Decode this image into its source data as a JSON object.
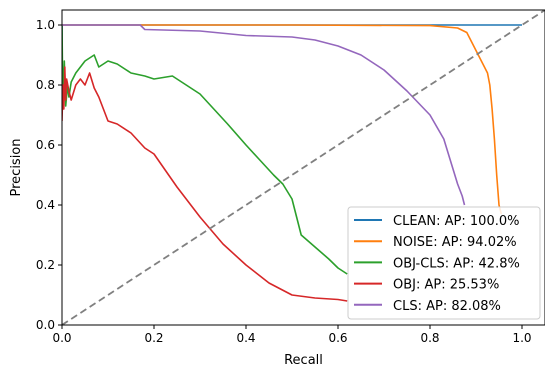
{
  "chart_data": {
    "type": "line",
    "xlabel": "Recall",
    "ylabel": "Precision",
    "xlim": [
      0.0,
      1.05
    ],
    "ylim": [
      0.0,
      1.05
    ],
    "xticks": [
      0.0,
      0.2,
      0.4,
      0.6,
      0.8,
      1.0
    ],
    "yticks": [
      0.0,
      0.2,
      0.4,
      0.6,
      0.8,
      1.0
    ],
    "xtick_labels": [
      "0.0",
      "0.2",
      "0.4",
      "0.6",
      "0.8",
      "1.0"
    ],
    "ytick_labels": [
      "0.0",
      "0.2",
      "0.4",
      "0.6",
      "0.8",
      "1.0"
    ],
    "grid": false,
    "legend_position": "lower-right",
    "diagonal": {
      "x": [
        0,
        1.05
      ],
      "y": [
        0,
        1.05
      ],
      "color": "#808080",
      "style": "dashed"
    },
    "series": [
      {
        "name": "CLEAN: AP: 100.0%",
        "color": "#1f77b4",
        "x": [
          0.0,
          0.0,
          1.0
        ],
        "y": [
          0.72,
          1.0,
          1.0
        ]
      },
      {
        "name": "NOISE: AP: 94.02%",
        "color": "#ff7f0e",
        "x": [
          0.0,
          0.01,
          0.1,
          0.5,
          0.8,
          0.86,
          0.88,
          0.895,
          0.905,
          0.915,
          0.925,
          0.93,
          0.935,
          0.94,
          0.945,
          0.95,
          0.955
        ],
        "y": [
          1.0,
          1.0,
          1.0,
          1.0,
          0.998,
          0.99,
          0.975,
          0.93,
          0.9,
          0.87,
          0.84,
          0.8,
          0.72,
          0.62,
          0.5,
          0.4,
          0.37
        ]
      },
      {
        "name": "OBJ-CLS: AP: 42.8%",
        "color": "#2ca02c",
        "x": [
          0.0,
          0.002,
          0.005,
          0.008,
          0.012,
          0.015,
          0.02,
          0.03,
          0.05,
          0.07,
          0.08,
          0.1,
          0.12,
          0.15,
          0.18,
          0.2,
          0.24,
          0.27,
          0.3,
          0.33,
          0.36,
          0.4,
          0.43,
          0.46,
          0.48,
          0.5,
          0.51,
          0.52,
          0.55,
          0.58,
          0.6,
          0.62
        ],
        "y": [
          1.0,
          0.72,
          0.88,
          0.73,
          0.8,
          0.76,
          0.81,
          0.84,
          0.88,
          0.9,
          0.86,
          0.88,
          0.87,
          0.84,
          0.83,
          0.82,
          0.83,
          0.8,
          0.77,
          0.72,
          0.67,
          0.6,
          0.55,
          0.5,
          0.47,
          0.42,
          0.36,
          0.3,
          0.26,
          0.22,
          0.19,
          0.17
        ]
      },
      {
        "name": "OBJ: AP: 25.53%",
        "color": "#d62728",
        "x": [
          0.0,
          0.002,
          0.004,
          0.006,
          0.008,
          0.01,
          0.015,
          0.02,
          0.03,
          0.04,
          0.05,
          0.06,
          0.07,
          0.08,
          0.09,
          0.1,
          0.12,
          0.15,
          0.18,
          0.2,
          0.25,
          0.3,
          0.35,
          0.4,
          0.45,
          0.5,
          0.55,
          0.6,
          0.62
        ],
        "y": [
          0.68,
          0.8,
          0.72,
          0.86,
          0.75,
          0.82,
          0.78,
          0.75,
          0.8,
          0.82,
          0.8,
          0.84,
          0.79,
          0.76,
          0.72,
          0.68,
          0.67,
          0.64,
          0.59,
          0.57,
          0.46,
          0.36,
          0.27,
          0.2,
          0.14,
          0.1,
          0.09,
          0.085,
          0.08
        ]
      },
      {
        "name": "CLS: AP: 82.08%",
        "color": "#9467bd",
        "x": [
          0.0,
          0.1,
          0.17,
          0.18,
          0.3,
          0.4,
          0.5,
          0.55,
          0.6,
          0.65,
          0.7,
          0.75,
          0.8,
          0.83,
          0.85,
          0.86,
          0.865,
          0.87,
          0.875
        ],
        "y": [
          1.0,
          1.0,
          1.0,
          0.985,
          0.98,
          0.965,
          0.96,
          0.95,
          0.93,
          0.9,
          0.85,
          0.78,
          0.7,
          0.62,
          0.52,
          0.47,
          0.45,
          0.43,
          0.4
        ]
      }
    ]
  }
}
